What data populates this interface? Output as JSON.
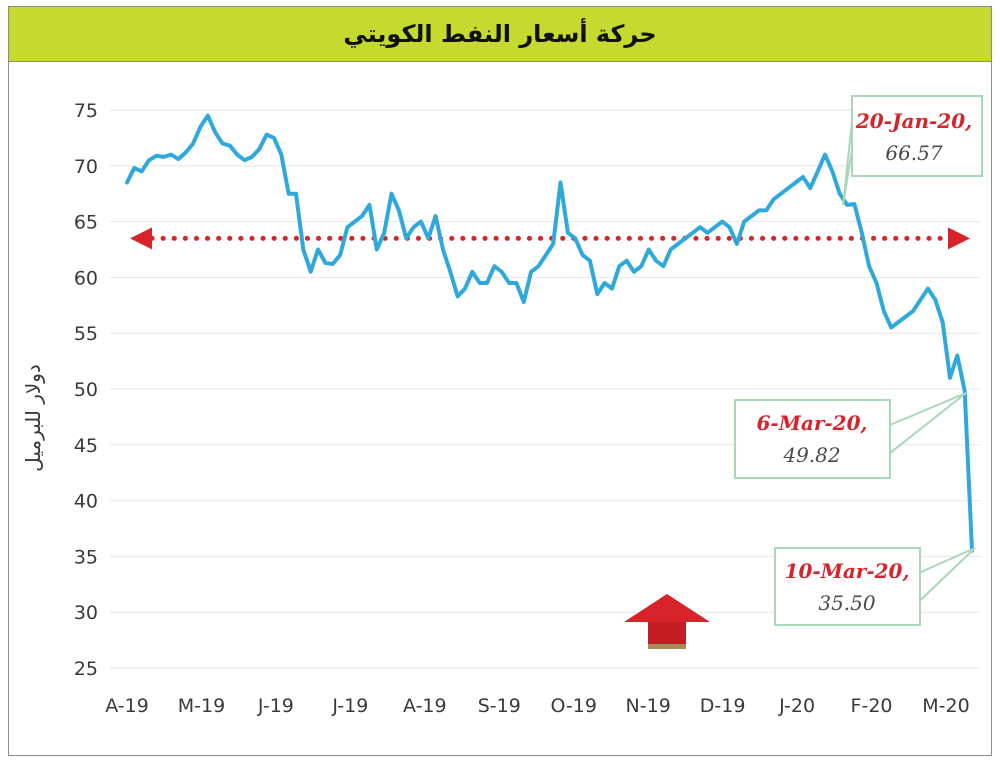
{
  "title": "حركة أسعار النفط الكويتي",
  "colors": {
    "title_bar": "#c6d92e",
    "line": "#2fa8de",
    "average_line": "#d8232a",
    "callout_border": "#a8d8b8",
    "gridline": "#e6e6e6"
  },
  "chart_data": {
    "type": "line",
    "title": "حركة أسعار النفط الكويتي",
    "xlabel": "",
    "ylabel": "دولار للبرميل",
    "ylim": [
      25,
      75
    ],
    "yticks": [
      75,
      70,
      65,
      60,
      55,
      50,
      45,
      40,
      35,
      30,
      25
    ],
    "x_tick_labels": [
      "A-19",
      "M-19",
      "J-19",
      "J-19",
      "A-19",
      "S-19",
      "O-19",
      "N-19",
      "D-19",
      "J-20",
      "F-20",
      "M-20"
    ],
    "grid": true,
    "series": [
      {
        "x_start": "2019-04-01",
        "x_end": "2020-03-12",
        "values": [
          68.5,
          69.8,
          69.5,
          70.5,
          70.9,
          70.8,
          71.0,
          70.6,
          71.2,
          72.0,
          73.5,
          74.5,
          73.0,
          72.0,
          71.8,
          71.0,
          70.5,
          70.8,
          71.5,
          72.8,
          72.5,
          71.0,
          67.5,
          67.5,
          62.5,
          60.5,
          62.5,
          61.3,
          61.2,
          62.0,
          64.5,
          65.0,
          65.5,
          66.5,
          62.5,
          64.0,
          67.5,
          66.0,
          63.5,
          64.5,
          65.0,
          63.5,
          65.5,
          62.5,
          60.5,
          58.3,
          59.0,
          60.5,
          59.5,
          59.5,
          61.0,
          60.5,
          59.5,
          59.5,
          57.8,
          60.5,
          61.0,
          62.0,
          63.0,
          68.5,
          64.0,
          63.5,
          62.0,
          61.5,
          58.5,
          59.5,
          59.0,
          61.0,
          61.5,
          60.5,
          61.0,
          62.5,
          61.5,
          61.0,
          62.5,
          63.0,
          63.5,
          64.0,
          64.5,
          64.0,
          64.5,
          65.0,
          64.5,
          63.0,
          65.0,
          65.5,
          66.0,
          66.0,
          67.0,
          67.5,
          68.0,
          68.5,
          69.0,
          68.0,
          69.5,
          71.0,
          69.5,
          67.5,
          66.5,
          66.57,
          64.0,
          61.0,
          59.5,
          57.0,
          55.5,
          56.0,
          56.5,
          57.0,
          58.0,
          59.0,
          58.0,
          56.0,
          51.0,
          53.0,
          49.82,
          35.5
        ]
      }
    ],
    "average_line": {
      "y": 63.5,
      "style": "dotted",
      "arrows": "both ends"
    },
    "annotations": [
      {
        "date": "20-Jan-20,",
        "value": "66.57",
        "y": 66.57
      },
      {
        "date": "6-Mar-20,",
        "value": "49.82",
        "y": 49.82
      },
      {
        "date": "10-Mar-20,",
        "value": "35.50",
        "y": 35.5
      }
    ]
  }
}
